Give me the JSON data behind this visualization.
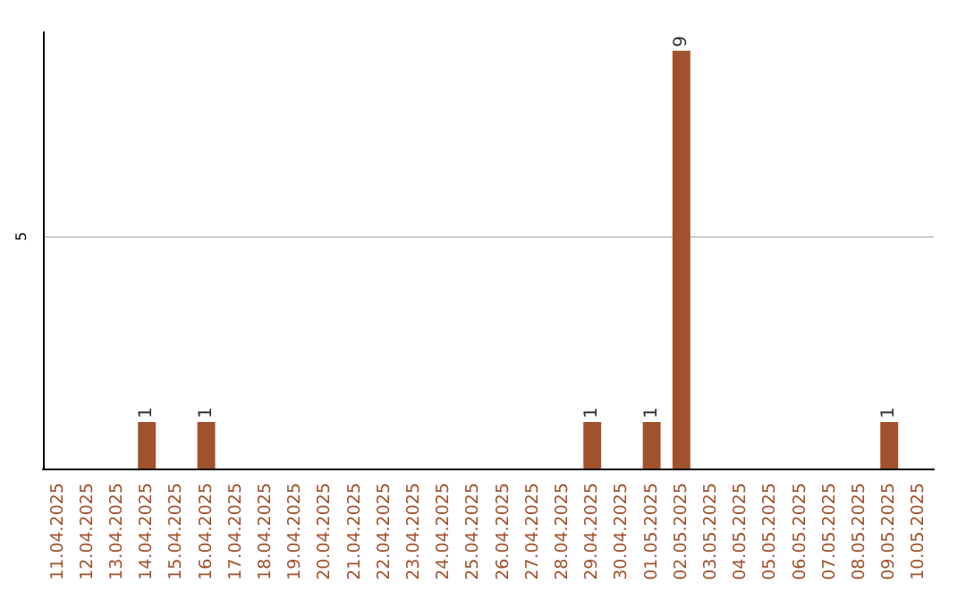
{
  "chart_data": {
    "type": "bar",
    "categories": [
      "11.04.2025",
      "12.04.2025",
      "13.04.2025",
      "14.04.2025",
      "15.04.2025",
      "16.04.2025",
      "17.04.2025",
      "18.04.2025",
      "19.04.2025",
      "20.04.2025",
      "21.04.2025",
      "22.04.2025",
      "23.04.2025",
      "24.04.2025",
      "25.04.2025",
      "26.04.2025",
      "27.04.2025",
      "28.04.2025",
      "29.04.2025",
      "30.04.2025",
      "01.05.2025",
      "02.05.2025",
      "03.05.2025",
      "04.05.2025",
      "05.05.2025",
      "06.05.2025",
      "07.05.2025",
      "08.05.2025",
      "09.05.2025",
      "10.05.2025"
    ],
    "values": [
      0,
      0,
      0,
      1,
      0,
      1,
      0,
      0,
      0,
      0,
      0,
      0,
      0,
      0,
      0,
      0,
      0,
      0,
      1,
      0,
      1,
      9,
      0,
      0,
      0,
      0,
      0,
      0,
      1,
      0
    ],
    "value_labels": [
      null,
      null,
      null,
      "1",
      null,
      "1",
      null,
      null,
      null,
      null,
      null,
      null,
      null,
      null,
      null,
      null,
      null,
      null,
      "1",
      null,
      "1",
      "9",
      null,
      null,
      null,
      null,
      null,
      null,
      "1",
      null
    ],
    "color": "#a0522d",
    "ylim": [
      0,
      9.4
    ],
    "yticks": [
      5
    ],
    "grid": "y"
  }
}
